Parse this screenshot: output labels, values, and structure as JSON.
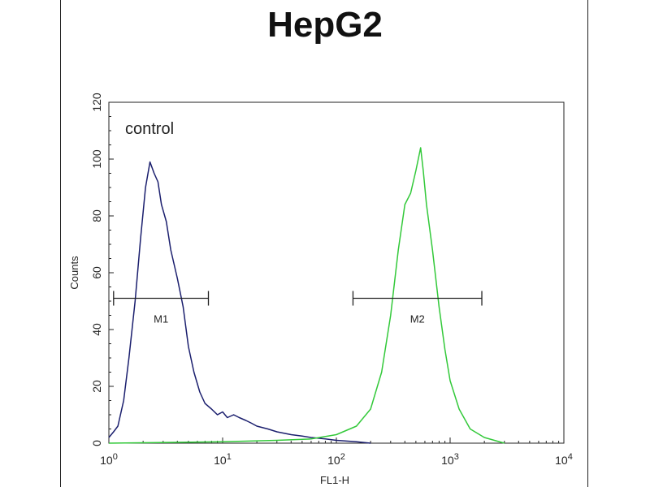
{
  "chart_data": {
    "type": "line",
    "title": "HepG2",
    "xlabel": "FL1-H",
    "ylabel": "Counts",
    "xscale": "log",
    "xlim": [
      1,
      10000
    ],
    "ylim": [
      0,
      120
    ],
    "x_ticks": [
      {
        "value": 1,
        "base": "10",
        "exp": "0"
      },
      {
        "value": 10,
        "base": "10",
        "exp": "1"
      },
      {
        "value": 100,
        "base": "10",
        "exp": "2"
      },
      {
        "value": 1000,
        "base": "10",
        "exp": "3"
      },
      {
        "value": 10000,
        "base": "10",
        "exp": "4"
      }
    ],
    "y_ticks": [
      0,
      20,
      40,
      60,
      80,
      100,
      120
    ],
    "annotation": "control",
    "series": [
      {
        "color": "#1b1f6e",
        "x": [
          1,
          1.1,
          1.2,
          1.35,
          1.5,
          1.7,
          1.9,
          2.1,
          2.3,
          2.5,
          2.7,
          2.9,
          3.2,
          3.5,
          4,
          4.5,
          5,
          5.6,
          6.3,
          7,
          8,
          9,
          10,
          11,
          12.5,
          14,
          16,
          18,
          20,
          25,
          30,
          40,
          50,
          60,
          80,
          100,
          150,
          200
        ],
        "y": [
          2,
          4,
          6,
          15,
          30,
          50,
          72,
          90,
          99,
          95,
          92,
          84,
          78,
          68,
          58,
          48,
          34,
          25,
          18,
          14,
          12,
          10,
          11,
          9,
          10,
          9,
          8,
          7,
          6,
          5,
          4,
          3,
          2.5,
          2,
          1.5,
          1,
          0.5,
          0
        ]
      },
      {
        "color": "#33c93a",
        "x": [
          1,
          10,
          30,
          60,
          100,
          150,
          200,
          250,
          300,
          350,
          400,
          450,
          500,
          550,
          580,
          620,
          700,
          800,
          900,
          1000,
          1200,
          1500,
          2000,
          3000
        ],
        "y": [
          0,
          0.5,
          1,
          1.5,
          3,
          6,
          12,
          25,
          45,
          68,
          84,
          88,
          96,
          104,
          96,
          84,
          68,
          48,
          33,
          22,
          12,
          5,
          2,
          0
        ]
      }
    ],
    "markers": [
      {
        "label": "M1",
        "x_start": 1.1,
        "x_end": 7.5,
        "y": 51
      },
      {
        "label": "M2",
        "x_start": 140,
        "x_end": 1900,
        "y": 51
      }
    ]
  }
}
